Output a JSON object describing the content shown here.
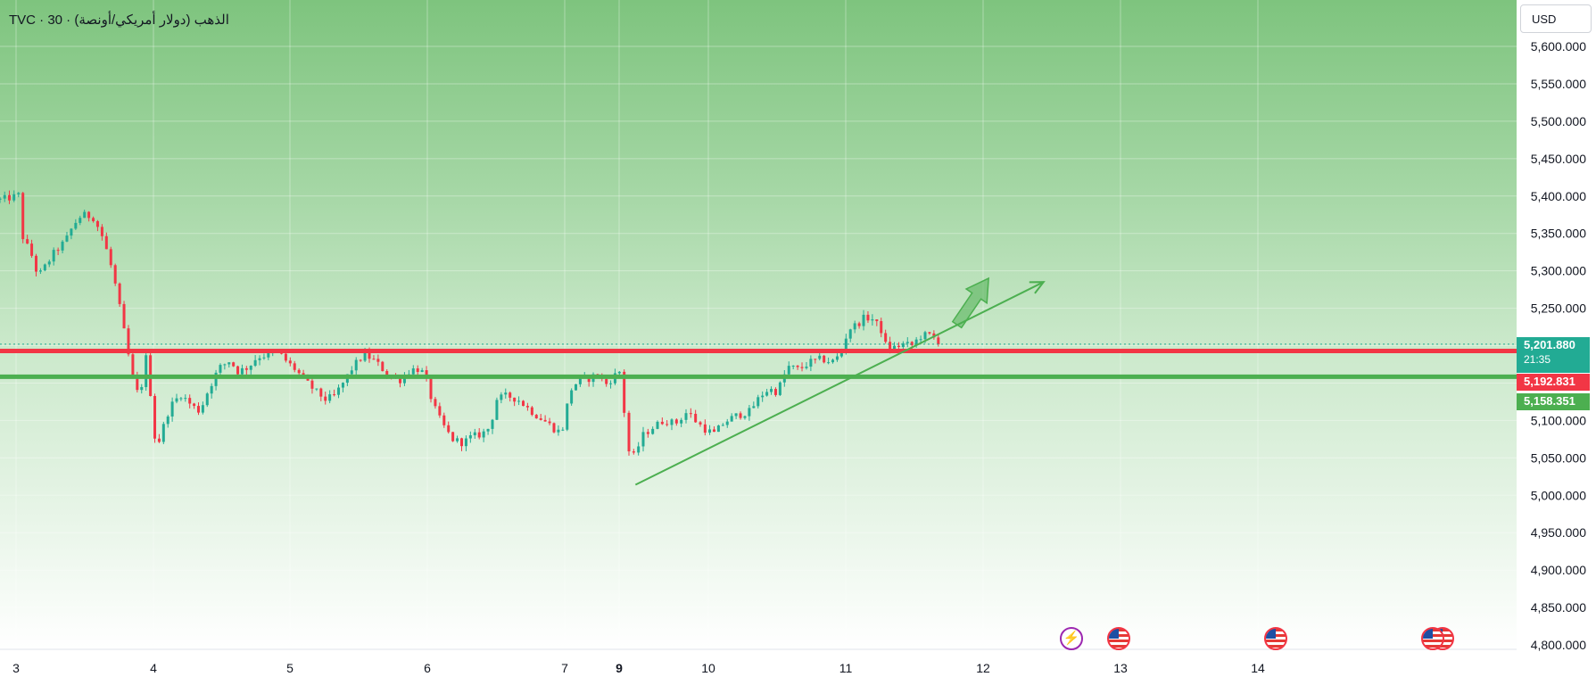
{
  "header": {
    "title": "TVC · 30 · الذهب (دولار أمريكي/أونصة)",
    "currency": "USD"
  },
  "tags": {
    "last_price": "5,201.880",
    "countdown": "21:35",
    "red_line": "5,192.831",
    "green_line": "5,158.351"
  },
  "colors": {
    "up": "#22ab94",
    "down": "#f23645",
    "resistance": "#f23645",
    "support": "#4caf50",
    "trendline": "#4caf50"
  },
  "events": [
    {
      "icon": "flash-icon",
      "x": 11.65
    },
    {
      "icon": "us-flag-icon",
      "x": 11.98
    },
    {
      "icon": "us-flag-icon",
      "x": 12.98
    },
    {
      "icon": "us-flag-icon",
      "x": 13.98
    },
    {
      "icon": "us-flag-icon",
      "x": 14.05
    }
  ],
  "chart_data": {
    "type": "candlestick",
    "timeframe": "30",
    "x_ticks": [
      {
        "x": 3,
        "label": "3"
      },
      {
        "x": 4,
        "label": "4"
      },
      {
        "x": 5,
        "label": "5"
      },
      {
        "x": 6,
        "label": "6"
      },
      {
        "x": 7,
        "label": "7"
      },
      {
        "x": 7.4,
        "label": "9",
        "bold": true
      },
      {
        "x": 8,
        "label": "10"
      },
      {
        "x": 9,
        "label": "11"
      },
      {
        "x": 10,
        "label": "12"
      },
      {
        "x": 11,
        "label": "13"
      },
      {
        "x": 12,
        "label": "14"
      }
    ],
    "xlim": [
      2.89,
      12.56
    ],
    "ylim": [
      4790,
      5620
    ],
    "y_ticks": [
      "4,800.000",
      "4,850.000",
      "4,900.000",
      "4,950.000",
      "5,000.000",
      "5,050.000",
      "5,100.000",
      "5,150.000",
      "5,200.000",
      "5,250.000",
      "5,300.000",
      "5,350.000",
      "5,400.000",
      "5,450.000",
      "5,500.000",
      "5,550.000",
      "5,600.000"
    ],
    "y_tick_values": [
      4800,
      4850,
      4900,
      4950,
      5000,
      5050,
      5100,
      5150,
      5200,
      5250,
      5300,
      5350,
      5400,
      5450,
      5500,
      5550,
      5600
    ],
    "horizontal_levels": [
      {
        "name": "resistance",
        "value": 5192.831,
        "color": "#f23645"
      },
      {
        "name": "support",
        "value": 5158.351,
        "color": "#4caf50"
      }
    ],
    "last_price": 5201.88,
    "close_path": [
      [
        2.89,
        5395
      ],
      [
        2.97,
        5398
      ],
      [
        3.03,
        5402
      ],
      [
        3.05,
        5345
      ],
      [
        3.12,
        5318
      ],
      [
        3.16,
        5292
      ],
      [
        3.22,
        5308
      ],
      [
        3.28,
        5325
      ],
      [
        3.36,
        5340
      ],
      [
        3.42,
        5362
      ],
      [
        3.48,
        5375
      ],
      [
        3.56,
        5372
      ],
      [
        3.62,
        5350
      ],
      [
        3.68,
        5315
      ],
      [
        3.73,
        5275
      ],
      [
        3.78,
        5225
      ],
      [
        3.86,
        5145
      ],
      [
        3.9,
        5132
      ],
      [
        3.95,
        5188
      ],
      [
        4.02,
        5060
      ],
      [
        4.07,
        5090
      ],
      [
        4.12,
        5118
      ],
      [
        4.2,
        5135
      ],
      [
        4.28,
        5120
      ],
      [
        4.34,
        5112
      ],
      [
        4.4,
        5140
      ],
      [
        4.48,
        5170
      ],
      [
        4.56,
        5180
      ],
      [
        4.62,
        5165
      ],
      [
        4.7,
        5172
      ],
      [
        4.76,
        5185
      ],
      [
        4.85,
        5188
      ],
      [
        4.92,
        5190
      ],
      [
        4.98,
        5178
      ],
      [
        5.04,
        5168
      ],
      [
        5.1,
        5155
      ],
      [
        5.18,
        5140
      ],
      [
        5.26,
        5128
      ],
      [
        5.32,
        5132
      ],
      [
        5.38,
        5148
      ],
      [
        5.46,
        5172
      ],
      [
        5.54,
        5188
      ],
      [
        5.6,
        5182
      ],
      [
        5.66,
        5172
      ],
      [
        5.72,
        5158
      ],
      [
        5.8,
        5154
      ],
      [
        5.86,
        5165
      ],
      [
        5.92,
        5170
      ],
      [
        5.98,
        5162
      ],
      [
        6.04,
        5122
      ],
      [
        6.1,
        5098
      ],
      [
        6.18,
        5075
      ],
      [
        6.26,
        5070
      ],
      [
        6.32,
        5078
      ],
      [
        6.4,
        5082
      ],
      [
        6.46,
        5092
      ],
      [
        6.5,
        5128
      ],
      [
        6.58,
        5133
      ],
      [
        6.66,
        5128
      ],
      [
        6.74,
        5115
      ],
      [
        6.8,
        5106
      ],
      [
        6.88,
        5096
      ],
      [
        6.94,
        5086
      ],
      [
        6.98,
        5085
      ],
      [
        7.04,
        5140
      ],
      [
        7.1,
        5153
      ],
      [
        7.18,
        5156
      ],
      [
        7.24,
        5162
      ],
      [
        7.3,
        5148
      ],
      [
        7.36,
        5158
      ],
      [
        7.4,
        5168
      ],
      [
        7.42,
        5140
      ],
      [
        7.46,
        5060
      ],
      [
        7.5,
        5052
      ],
      [
        7.56,
        5080
      ],
      [
        7.62,
        5090
      ],
      [
        7.7,
        5100
      ],
      [
        7.78,
        5096
      ],
      [
        7.86,
        5112
      ],
      [
        7.92,
        5098
      ],
      [
        7.98,
        5088
      ],
      [
        8.04,
        5082
      ],
      [
        8.12,
        5098
      ],
      [
        8.2,
        5106
      ],
      [
        8.3,
        5112
      ],
      [
        8.38,
        5133
      ],
      [
        8.44,
        5142
      ],
      [
        8.5,
        5138
      ],
      [
        8.58,
        5172
      ],
      [
        8.66,
        5168
      ],
      [
        8.74,
        5178
      ],
      [
        8.82,
        5182
      ],
      [
        8.9,
        5178
      ],
      [
        8.96,
        5188
      ],
      [
        9.02,
        5222
      ],
      [
        9.08,
        5228
      ],
      [
        9.14,
        5238
      ],
      [
        9.2,
        5235
      ],
      [
        9.26,
        5220
      ],
      [
        9.3,
        5195
      ],
      [
        9.36,
        5198
      ],
      [
        9.42,
        5202
      ],
      [
        9.48,
        5200
      ],
      [
        9.54,
        5212
      ],
      [
        9.6,
        5215
      ],
      [
        9.66,
        5208
      ],
      [
        9.7,
        5202
      ]
    ],
    "trendlines": [
      {
        "name": "rising-trendline",
        "from": [
          7.51,
          5014
        ],
        "to": [
          10.44,
          5285
        ],
        "arrow": true,
        "color": "#4caf50"
      },
      {
        "name": "projection-arrow",
        "from": [
          9.81,
          5228
        ],
        "to": [
          10.04,
          5290
        ],
        "arrow": "block",
        "color": "#4caf50"
      }
    ]
  }
}
